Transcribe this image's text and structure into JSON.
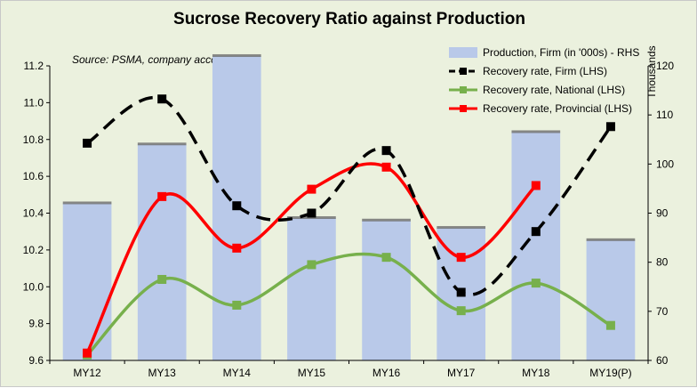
{
  "chart_data": {
    "type": "bar",
    "title": "Sucrose Recovery Ratio against Production",
    "source_note": "Source: PSMA, company accounts",
    "right_axis_unit": "Thousands",
    "categories": [
      "MY12",
      "MY13",
      "MY14",
      "MY15",
      "MY16",
      "MY17",
      "MY18",
      "MY19(P)"
    ],
    "left_axis": {
      "ylim": [
        9.6,
        11.2
      ],
      "ticks": [
        "9.6",
        "9.8",
        "10.0",
        "10.2",
        "10.4",
        "10.6",
        "10.8",
        "11.0",
        "11.2"
      ]
    },
    "right_axis": {
      "ylim": [
        60,
        120
      ],
      "ticks": [
        "60",
        "70",
        "80",
        "90",
        "100",
        "110",
        "120"
      ]
    },
    "legend_position": "top-right",
    "series": [
      {
        "name": "Production, Firm (in '000s) - RHS",
        "kind": "bar",
        "axis": "right",
        "color": "#b9c9e9",
        "values": [
          92,
          104,
          122,
          89,
          88.5,
          87,
          106.5,
          84.5
        ]
      },
      {
        "name": "Recovery rate, Firm (LHS)",
        "kind": "line",
        "axis": "left",
        "color": "#000000",
        "dash": true,
        "values": [
          10.78,
          11.02,
          10.44,
          10.4,
          10.74,
          9.97,
          10.3,
          10.87
        ]
      },
      {
        "name": "Recovery rate, National (LHS)",
        "kind": "line",
        "axis": "left",
        "color": "#77b04c",
        "dash": false,
        "values": [
          9.63,
          10.04,
          9.9,
          10.12,
          10.16,
          9.87,
          10.02,
          9.79
        ]
      },
      {
        "name": "Recovery rate, Provincial (LHS)",
        "kind": "line",
        "axis": "left",
        "color": "#ff0000",
        "dash": false,
        "values": [
          9.64,
          10.49,
          10.21,
          10.53,
          10.65,
          10.16,
          10.55,
          null
        ]
      }
    ]
  }
}
